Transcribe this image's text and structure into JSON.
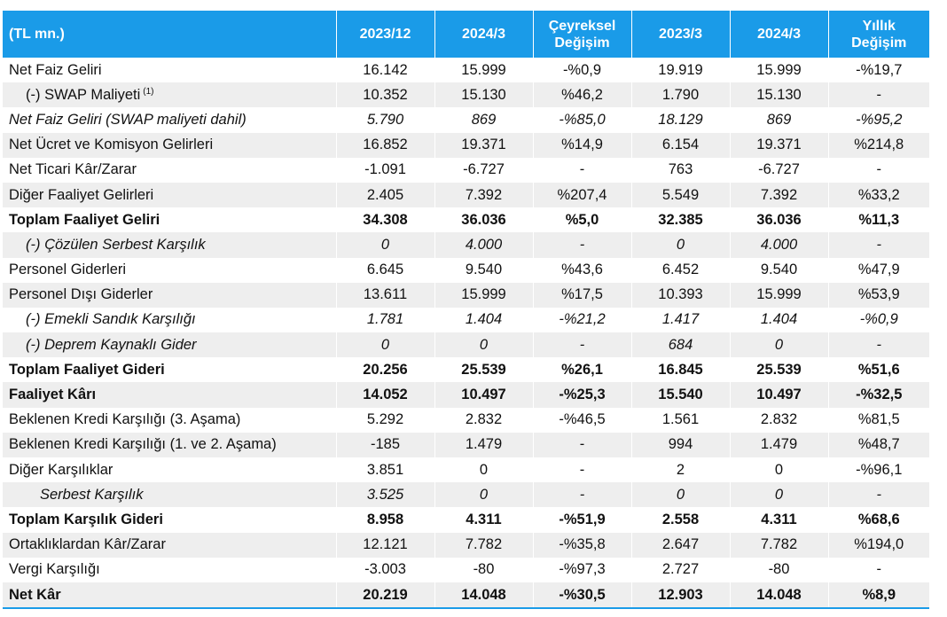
{
  "header": {
    "unit": "(TL mn.)",
    "col1": "2023/12",
    "col2": "2024/3",
    "col3_line1": "Çeyreksel",
    "col3_line2": "Değişim",
    "col4": "2023/3",
    "col5": "2024/3",
    "col6_line1": "Yıllık",
    "col6_line2": "Değişim"
  },
  "rows": [
    {
      "label": "Net Faiz Geliri",
      "note": "",
      "c1": "16.142",
      "c2": "15.999",
      "c3": "-%0,9",
      "c4": "19.919",
      "c5": "15.999",
      "c6": "-%19,7"
    },
    {
      "label": "(-) SWAP Maliyeti",
      "note": "(1)",
      "c1": "10.352",
      "c2": "15.130",
      "c3": "%46,2",
      "c4": "1.790",
      "c5": "15.130",
      "c6": "-"
    },
    {
      "label": "Net Faiz Geliri (SWAP maliyeti dahil)",
      "note": "",
      "c1": "5.790",
      "c2": "869",
      "c3": "-%85,0",
      "c4": "18.129",
      "c5": "869",
      "c6": "-%95,2"
    },
    {
      "label": "Net Ücret ve Komisyon Gelirleri",
      "note": "",
      "c1": "16.852",
      "c2": "19.371",
      "c3": "%14,9",
      "c4": "6.154",
      "c5": "19.371",
      "c6": "%214,8"
    },
    {
      "label": "Net Ticari Kâr/Zarar",
      "note": "",
      "c1": "-1.091",
      "c2": "-6.727",
      "c3": "-",
      "c4": "763",
      "c5": "-6.727",
      "c6": "-"
    },
    {
      "label": "Diğer Faaliyet Gelirleri",
      "note": "",
      "c1": "2.405",
      "c2": "7.392",
      "c3": "%207,4",
      "c4": "5.549",
      "c5": "7.392",
      "c6": "%33,2"
    },
    {
      "label": "Toplam Faaliyet Geliri",
      "note": "",
      "c1": "34.308",
      "c2": "36.036",
      "c3": "%5,0",
      "c4": "32.385",
      "c5": "36.036",
      "c6": "%11,3"
    },
    {
      "label": "(-) Çözülen Serbest Karşılık",
      "note": "",
      "c1": "0",
      "c2": "4.000",
      "c3": "-",
      "c4": "0",
      "c5": "4.000",
      "c6": "-"
    },
    {
      "label": "Personel Giderleri",
      "note": "",
      "c1": "6.645",
      "c2": "9.540",
      "c3": "%43,6",
      "c4": "6.452",
      "c5": "9.540",
      "c6": "%47,9"
    },
    {
      "label": "Personel Dışı Giderler",
      "note": "",
      "c1": "13.611",
      "c2": "15.999",
      "c3": "%17,5",
      "c4": "10.393",
      "c5": "15.999",
      "c6": "%53,9"
    },
    {
      "label": "(-) Emekli Sandık Karşılığı",
      "note": "",
      "c1": "1.781",
      "c2": "1.404",
      "c3": "-%21,2",
      "c4": "1.417",
      "c5": "1.404",
      "c6": "-%0,9"
    },
    {
      "label": "(-) Deprem Kaynaklı Gider",
      "note": "",
      "c1": "0",
      "c2": "0",
      "c3": "-",
      "c4": "684",
      "c5": "0",
      "c6": "-"
    },
    {
      "label": "Toplam Faaliyet Gideri",
      "note": "",
      "c1": "20.256",
      "c2": "25.539",
      "c3": "%26,1",
      "c4": "16.845",
      "c5": "25.539",
      "c6": "%51,6"
    },
    {
      "label": "Faaliyet Kârı",
      "note": "",
      "c1": "14.052",
      "c2": "10.497",
      "c3": "-%25,3",
      "c4": "15.540",
      "c5": "10.497",
      "c6": "-%32,5"
    },
    {
      "label": "Beklenen Kredi Karşılığı (3. Aşama)",
      "note": "",
      "c1": "5.292",
      "c2": "2.832",
      "c3": "-%46,5",
      "c4": "1.561",
      "c5": "2.832",
      "c6": "%81,5"
    },
    {
      "label": "Beklenen Kredi Karşılığı (1. ve 2. Aşama)",
      "note": "",
      "c1": "-185",
      "c2": "1.479",
      "c3": "-",
      "c4": "994",
      "c5": "1.479",
      "c6": "%48,7"
    },
    {
      "label": "Diğer Karşılıklar",
      "note": "",
      "c1": "3.851",
      "c2": "0",
      "c3": "-",
      "c4": "2",
      "c5": "0",
      "c6": "-%96,1"
    },
    {
      "label": "Serbest Karşılık",
      "note": "",
      "c1": "3.525",
      "c2": "0",
      "c3": "-",
      "c4": "0",
      "c5": "0",
      "c6": "-"
    },
    {
      "label": "Toplam Karşılık Gideri",
      "note": "",
      "c1": "8.958",
      "c2": "4.311",
      "c3": "-%51,9",
      "c4": "2.558",
      "c5": "4.311",
      "c6": "%68,6"
    },
    {
      "label": "Ortaklıklardan Kâr/Zarar",
      "note": "",
      "c1": "12.121",
      "c2": "7.782",
      "c3": "-%35,8",
      "c4": "2.647",
      "c5": "7.782",
      "c6": "%194,0"
    },
    {
      "label": "Vergi Karşılığı",
      "note": "",
      "c1": "-3.003",
      "c2": "-80",
      "c3": "-%97,3",
      "c4": "2.727",
      "c5": "-80",
      "c6": "-"
    },
    {
      "label": "Net Kâr",
      "note": "",
      "c1": "20.219",
      "c2": "14.048",
      "c3": "-%30,5",
      "c4": "12.903",
      "c5": "14.048",
      "c6": "%8,9"
    }
  ]
}
